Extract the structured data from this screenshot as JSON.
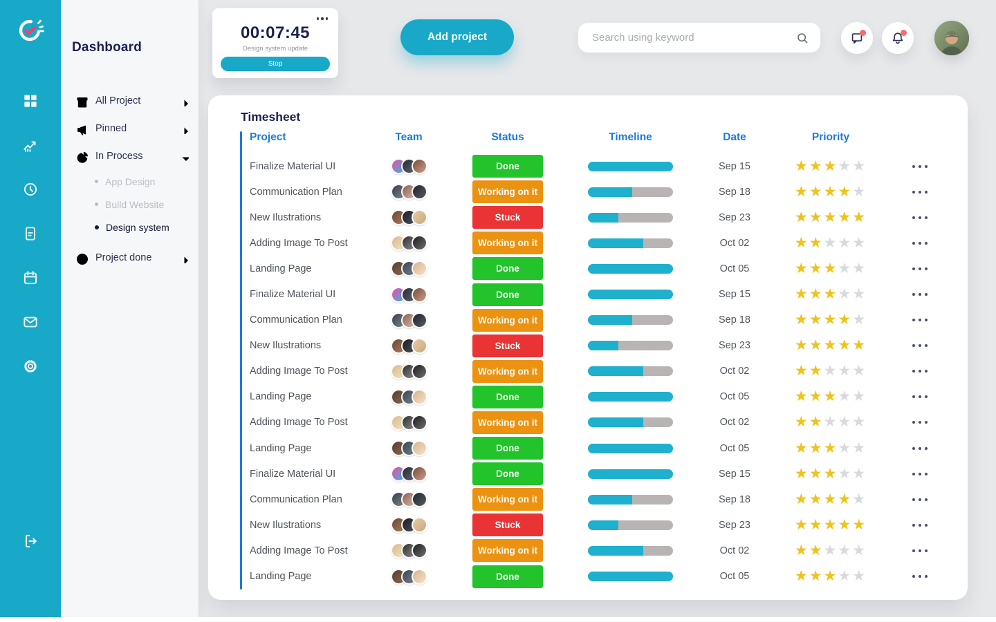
{
  "colors": {
    "accent": "#18A8C8",
    "header_blue": "#1E7BD7",
    "navy": "#1B2153",
    "status_done": "#22C32B",
    "status_working": "#EC9211",
    "status_stuck": "#EA3334",
    "star_filled": "#EFC319",
    "star_empty": "#D8D9DC",
    "progress_track": "#B9B4B4",
    "progress_fill": "#1FB0CE",
    "notification_dot": "#F26D6D",
    "logo_check": "#F0436B"
  },
  "rail": {
    "items": [
      {
        "icon": "grid-icon",
        "active": true
      },
      {
        "icon": "analytics-icon",
        "active": false
      },
      {
        "icon": "clock-icon",
        "active": false
      },
      {
        "icon": "document-icon",
        "active": false
      },
      {
        "icon": "calendar-icon",
        "active": false
      },
      {
        "icon": "mail-icon",
        "active": false
      },
      {
        "icon": "settings-icon",
        "active": false
      }
    ],
    "logout_icon": "logout-icon"
  },
  "sidebar": {
    "title": "Dashboard",
    "items": [
      {
        "label": "All Project",
        "icon": "archive-box-icon",
        "chevron": "right"
      },
      {
        "label": "Pinned",
        "icon": "megaphone-icon",
        "chevron": "right"
      },
      {
        "label": "In Process",
        "icon": "pie-chart-icon",
        "chevron": "down",
        "children": [
          {
            "label": "App Design",
            "active": false
          },
          {
            "label": "Build Website",
            "active": false
          },
          {
            "label": "Design system",
            "active": true
          }
        ]
      },
      {
        "label": "Project done",
        "icon": "check-circle-icon",
        "chevron": "right"
      }
    ]
  },
  "topbar": {
    "timer": {
      "time": "00:07:45",
      "task": "Design system update",
      "stop_label": "Stop"
    },
    "add_project_label": "Add project",
    "search_placeholder": "Search using keyword",
    "notifications": [
      {
        "icon": "chat-icon",
        "badge": true
      },
      {
        "icon": "bell-icon",
        "badge": true
      }
    ]
  },
  "timesheet": {
    "title": "Timesheet",
    "columns": [
      "Project",
      "Team",
      "Status",
      "Timeline",
      "Date",
      "Priority"
    ],
    "statuses": {
      "done": {
        "label": "Done",
        "color": "#22C32B"
      },
      "working": {
        "label": "Working on it",
        "color": "#EC9211"
      },
      "stuck": {
        "label": "Stuck",
        "color": "#EA3334"
      }
    },
    "team_palettes": {
      "Finalize Material UI": [
        [
          "#e94f9e",
          "#35b6e8"
        ],
        [
          "#2b2b33",
          "#5c6470"
        ],
        [
          "#7a4a3a",
          "#caa08a"
        ]
      ],
      "Communication Plan": [
        [
          "#3a3f45",
          "#7d868e"
        ],
        [
          "#8a5f52",
          "#d8b9a8"
        ],
        [
          "#23262b",
          "#555b63"
        ]
      ],
      "New Ilustrations": [
        [
          "#6e4632",
          "#a87b5c"
        ],
        [
          "#1d1f24",
          "#4a4f57"
        ],
        [
          "#e8cba4",
          "#c9a97e"
        ]
      ],
      "Adding Image To Post": [
        [
          "#d9b98c",
          "#f2e3c2"
        ],
        [
          "#2e2e2e",
          "#8c8c8c"
        ],
        [
          "#1f1f1f",
          "#6e6e6e"
        ]
      ],
      "Landing Page": [
        [
          "#553c30",
          "#8b6a52"
        ],
        [
          "#3c4652",
          "#73808c"
        ],
        [
          "#d9b28e",
          "#f4e2c8"
        ]
      ]
    },
    "rows": [
      {
        "project": "Finalize Material UI",
        "status": "done",
        "progress": 100,
        "date": "Sep 15",
        "rating": 3
      },
      {
        "project": "Communication Plan",
        "status": "working",
        "progress": 52,
        "date": "Sep 18",
        "rating": 4
      },
      {
        "project": "New Ilustrations",
        "status": "stuck",
        "progress": 36,
        "date": "Sep 23",
        "rating": 5
      },
      {
        "project": "Adding Image To Post",
        "status": "working",
        "progress": 65,
        "date": "Oct 02",
        "rating": 2
      },
      {
        "project": "Landing Page",
        "status": "done",
        "progress": 100,
        "date": "Oct 05",
        "rating": 3
      },
      {
        "project": "Finalize Material UI",
        "status": "done",
        "progress": 100,
        "date": "Sep 15",
        "rating": 3
      },
      {
        "project": "Communication Plan",
        "status": "working",
        "progress": 52,
        "date": "Sep 18",
        "rating": 4
      },
      {
        "project": "New Ilustrations",
        "status": "stuck",
        "progress": 36,
        "date": "Sep 23",
        "rating": 5
      },
      {
        "project": "Adding Image To Post",
        "status": "working",
        "progress": 65,
        "date": "Oct 02",
        "rating": 2
      },
      {
        "project": "Landing Page",
        "status": "done",
        "progress": 100,
        "date": "Oct 05",
        "rating": 3
      },
      {
        "project": "Adding Image To Post",
        "status": "working",
        "progress": 65,
        "date": "Oct 02",
        "rating": 2
      },
      {
        "project": "Landing Page",
        "status": "done",
        "progress": 100,
        "date": "Oct 05",
        "rating": 3
      },
      {
        "project": "Finalize Material UI",
        "status": "done",
        "progress": 100,
        "date": "Sep 15",
        "rating": 3
      },
      {
        "project": "Communication Plan",
        "status": "working",
        "progress": 52,
        "date": "Sep 18",
        "rating": 4
      },
      {
        "project": "New Ilustrations",
        "status": "stuck",
        "progress": 36,
        "date": "Sep 23",
        "rating": 5
      },
      {
        "project": "Adding Image To Post",
        "status": "working",
        "progress": 65,
        "date": "Oct 02",
        "rating": 2
      },
      {
        "project": "Landing Page",
        "status": "done",
        "progress": 100,
        "date": "Oct 05",
        "rating": 3
      }
    ]
  }
}
